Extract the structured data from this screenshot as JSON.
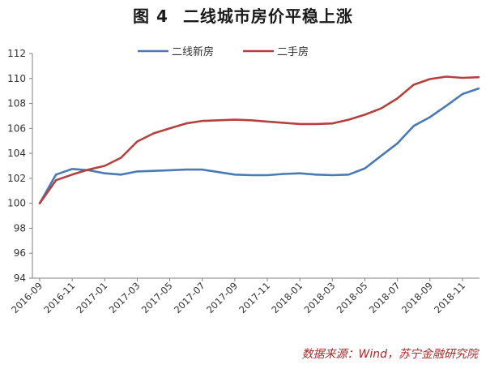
{
  "figure": {
    "number": "图 4",
    "title": "二线城市房价平稳上涨",
    "source": "数据来源：Wind，苏宁金融研究院"
  },
  "chart_data": {
    "type": "line",
    "title": "二线城市房价平稳上涨",
    "xlabel": "",
    "ylabel": "",
    "ylim": [
      94,
      112
    ],
    "yticks": [
      94,
      96,
      98,
      100,
      102,
      104,
      106,
      108,
      110,
      112
    ],
    "grid": false,
    "legend_position": "top",
    "x": [
      "2016-09",
      "2016-10",
      "2016-11",
      "2016-12",
      "2017-01",
      "2017-02",
      "2017-03",
      "2017-04",
      "2017-05",
      "2017-06",
      "2017-07",
      "2017-08",
      "2017-09",
      "2017-10",
      "2017-11",
      "2017-12",
      "2018-01",
      "2018-02",
      "2018-03",
      "2018-04",
      "2018-05",
      "2018-06",
      "2018-07",
      "2018-08",
      "2018-09",
      "2018-10",
      "2018-11",
      "2018-12"
    ],
    "xtick_labels": [
      "2016-09",
      "2016-11",
      "2017-01",
      "2017-03",
      "2017-05",
      "2017-07",
      "2017-09",
      "2017-11",
      "2018-01",
      "2018-03",
      "2018-05",
      "2018-07",
      "2018-09",
      "2018-11"
    ],
    "series": [
      {
        "name": "二线新房",
        "color": "#4a7ab5",
        "values": [
          100.0,
          102.3,
          102.75,
          102.65,
          102.4,
          102.3,
          102.55,
          102.6,
          102.65,
          102.7,
          102.7,
          102.5,
          102.3,
          102.25,
          102.25,
          102.35,
          102.4,
          102.3,
          102.25,
          102.3,
          102.8,
          103.8,
          104.8,
          106.2,
          106.9,
          107.8,
          108.75,
          109.2
        ]
      },
      {
        "name": "二手房",
        "color": "#b5413f",
        "values": [
          100.0,
          101.85,
          102.3,
          102.7,
          103.0,
          103.65,
          104.95,
          105.6,
          106.0,
          106.4,
          106.6,
          106.65,
          106.7,
          106.65,
          106.55,
          106.45,
          106.35,
          106.35,
          106.4,
          106.7,
          107.1,
          107.6,
          108.4,
          109.5,
          109.95,
          110.15,
          110.05,
          110.1
        ]
      }
    ]
  }
}
